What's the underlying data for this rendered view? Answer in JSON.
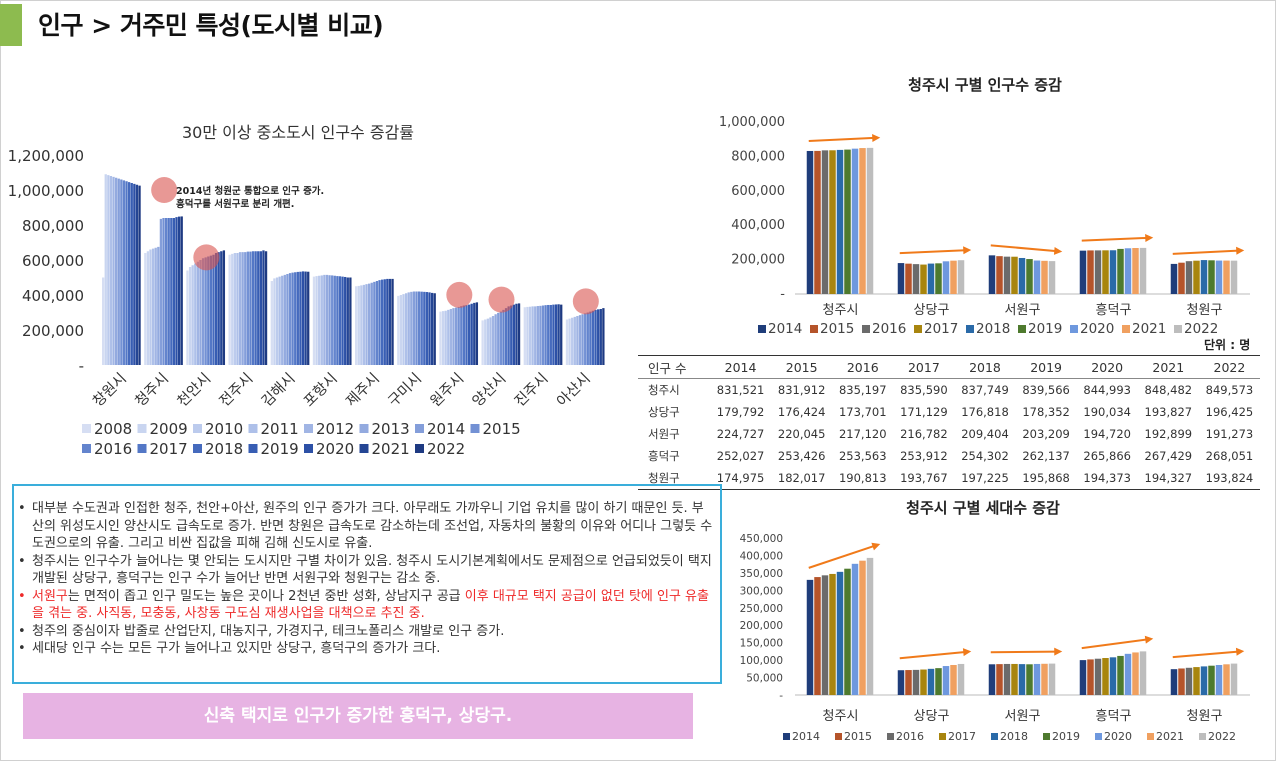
{
  "page": {
    "title": "인구 > 거주민 특성(도시별 비교)",
    "accent_color": "#8dbb4f"
  },
  "chart_data": [
    {
      "type": "bar",
      "title": "30만 이상 중소도시 인구수 증감률",
      "categories": [
        "창원시",
        "청주시",
        "천안시",
        "전주시",
        "김해시",
        "포항시",
        "제주시",
        "구미시",
        "원주시",
        "양산시",
        "진주시",
        "아산시"
      ],
      "series_names": [
        "2008",
        "2009",
        "2010",
        "2011",
        "2012",
        "2013",
        "2014",
        "2015",
        "2016",
        "2017",
        "2018",
        "2019",
        "2020",
        "2021",
        "2022"
      ],
      "values": [
        [
          500000,
          1090000,
          1085000,
          1080000,
          1075000,
          1070000,
          1065000,
          1060000,
          1055000,
          1050000,
          1045000,
          1040000,
          1035000,
          1030000,
          1025000
        ],
        [
          640000,
          650000,
          660000,
          665000,
          670000,
          675000,
          835000,
          840000,
          840000,
          840000,
          840000,
          840000,
          845000,
          848000,
          849000
        ],
        [
          540000,
          560000,
          570000,
          580000,
          590000,
          600000,
          610000,
          615000,
          620000,
          625000,
          630000,
          640000,
          645000,
          650000,
          655000
        ],
        [
          630000,
          635000,
          640000,
          640000,
          645000,
          645000,
          645000,
          648000,
          648000,
          650000,
          650000,
          650000,
          650000,
          655000,
          650000
        ],
        [
          480000,
          495000,
          500000,
          505000,
          510000,
          515000,
          520000,
          525000,
          528000,
          530000,
          532000,
          533000,
          535000,
          534000,
          533000
        ],
        [
          505000,
          508000,
          510000,
          512000,
          515000,
          515000,
          513000,
          512000,
          510000,
          508000,
          507000,
          505000,
          503000,
          500000,
          500000
        ],
        [
          450000,
          452000,
          455000,
          458000,
          462000,
          465000,
          470000,
          475000,
          480000,
          485000,
          488000,
          490000,
          492000,
          492000,
          492000
        ],
        [
          395000,
          400000,
          405000,
          410000,
          415000,
          418000,
          420000,
          420000,
          420000,
          419000,
          418000,
          417000,
          415000,
          412000,
          410000
        ],
        [
          305000,
          308000,
          310000,
          315000,
          320000,
          325000,
          328000,
          332000,
          336000,
          340000,
          342000,
          345000,
          350000,
          355000,
          358000
        ],
        [
          255000,
          260000,
          265000,
          272000,
          280000,
          290000,
          298000,
          305000,
          315000,
          325000,
          335000,
          340000,
          345000,
          350000,
          352000
        ],
        [
          330000,
          332000,
          333000,
          335000,
          335000,
          337000,
          338000,
          340000,
          342000,
          343000,
          343000,
          345000,
          346000,
          347000,
          345000
        ],
        [
          260000,
          265000,
          270000,
          275000,
          280000,
          285000,
          290000,
          295000,
          300000,
          305000,
          310000,
          315000,
          318000,
          320000,
          325000
        ]
      ],
      "yticks": [
        "1,200,000",
        "1,000,000",
        "800,000",
        "600,000",
        "400,000",
        "200,000",
        "-"
      ],
      "ylim": [
        0,
        1200000
      ],
      "annotation": [
        "2014년 청원군 통합으로 인구 증가.",
        "흥덕구를 서원구로 분리 개편."
      ],
      "highlight_categories": [
        "청주시",
        "천안시",
        "원주시",
        "양산시",
        "아산시"
      ],
      "legend_position": "bottom",
      "colors": [
        "#d6def3",
        "#c9d5f0",
        "#bccbed",
        "#aec0e9",
        "#a1b5e4",
        "#93aadf",
        "#849eda",
        "#7391d4",
        "#6384cd",
        "#5377c6",
        "#456abd",
        "#375db3",
        "#2c50a6",
        "#244594",
        "#1e3a82"
      ]
    },
    {
      "type": "bar",
      "title": "청주시 구별 인구수 증감",
      "categories": [
        "청주시",
        "상당구",
        "서원구",
        "흥덕구",
        "청원구"
      ],
      "series_names": [
        "2014",
        "2015",
        "2016",
        "2017",
        "2018",
        "2019",
        "2020",
        "2021",
        "2022"
      ],
      "values": [
        [
          831521,
          831912,
          835197,
          835590,
          837749,
          839566,
          844993,
          848482,
          849573
        ],
        [
          179792,
          176424,
          173701,
          171129,
          176818,
          178352,
          190034,
          193827,
          196425
        ],
        [
          224727,
          220045,
          217120,
          216782,
          209404,
          203209,
          194720,
          192899,
          191273
        ],
        [
          252027,
          253426,
          253563,
          253912,
          254302,
          262137,
          265866,
          267429,
          268051
        ],
        [
          174975,
          182017,
          190813,
          193767,
          197225,
          195868,
          194373,
          194327,
          193824
        ]
      ],
      "yticks": [
        "1,000,000",
        "800,000",
        "600,000",
        "400,000",
        "200,000",
        "-"
      ],
      "ylim": [
        0,
        1000000
      ],
      "legend_position": "bottom",
      "colors": [
        "#1f3d7a",
        "#b5542a",
        "#6b6b6b",
        "#a8850e",
        "#2a6aa8",
        "#4e7a2e",
        "#6e98de",
        "#f0a060",
        "#bdbdbd"
      ]
    },
    {
      "type": "bar",
      "title": "청주시 구별 세대수 증감",
      "categories": [
        "청주시",
        "상당구",
        "서원구",
        "흥덕구",
        "청원구"
      ],
      "series_names": [
        "2014",
        "2015",
        "2016",
        "2017",
        "2018",
        "2019",
        "2020",
        "2021",
        "2022"
      ],
      "values": [
        [
          330000,
          338000,
          343000,
          347000,
          353000,
          362000,
          376000,
          385000,
          393000
        ],
        [
          71000,
          71500,
          72000,
          73000,
          75000,
          77000,
          83000,
          86000,
          89000
        ],
        [
          88000,
          88500,
          89000,
          89000,
          88500,
          88000,
          89000,
          89500,
          90000
        ],
        [
          100000,
          102000,
          104000,
          106000,
          108000,
          112000,
          118000,
          122000,
          125000
        ],
        [
          74000,
          76000,
          78000,
          80000,
          82000,
          84000,
          86000,
          88000,
          90000
        ]
      ],
      "yticks": [
        "450,000",
        "400,000",
        "350,000",
        "300,000",
        "250,000",
        "200,000",
        "150,000",
        "100,000",
        "50,000",
        "-"
      ],
      "ylim": [
        0,
        450000
      ],
      "legend_position": "bottom",
      "colors": [
        "#1f3d7a",
        "#b5542a",
        "#6b6b6b",
        "#a8850e",
        "#2a6aa8",
        "#4e7a2e",
        "#6e98de",
        "#f0a060",
        "#bdbdbd"
      ]
    }
  ],
  "table": {
    "unit": "단위 : 명",
    "header": [
      "인구 수",
      "2014",
      "2015",
      "2016",
      "2017",
      "2018",
      "2019",
      "2020",
      "2021",
      "2022"
    ],
    "rows": [
      [
        "청주시",
        "831,521",
        "831,912",
        "835,197",
        "835,590",
        "837,749",
        "839,566",
        "844,993",
        "848,482",
        "849,573"
      ],
      [
        "상당구",
        "179,792",
        "176,424",
        "173,701",
        "171,129",
        "176,818",
        "178,352",
        "190,034",
        "193,827",
        "196,425"
      ],
      [
        "서원구",
        "224,727",
        "220,045",
        "217,120",
        "216,782",
        "209,404",
        "203,209",
        "194,720",
        "192,899",
        "191,273"
      ],
      [
        "흥덕구",
        "252,027",
        "253,426",
        "253,563",
        "253,912",
        "254,302",
        "262,137",
        "265,866",
        "267,429",
        "268,051"
      ],
      [
        "청원구",
        "174,975",
        "182,017",
        "190,813",
        "193,767",
        "197,225",
        "195,868",
        "194,373",
        "194,327",
        "193,824"
      ]
    ]
  },
  "notes": [
    {
      "text": "대부분 수도권과 인접한 청주, 천안+아산, 원주의 인구 증가가 크다. 아무래도 가까우니 기업 유치를 많이 하기 때문인 듯. 부산의 위성도시인 양산시도 급속도로 증가. 반면 창원은 급속도로 감소하는데 조선업, 자동차의 불황의 이유와 어디나 그렇듯 수도권으로의 유출. 그리고 비싼 집값을 피해 김해 신도시로 유출."
    },
    {
      "text": "청주시는 인구수가 늘어나는 몇 안되는 도시지만 구별 차이가 있음. 청주시 도시기본계획에서도 문제점으로 언급되었듯이 택지 개발된 상당구, 흥덕구는 인구 수가 늘어난 반면 서원구와 청원구는 감소 중."
    },
    {
      "a": "서원구",
      "b": "는 면적이 좁고 인구 밀도는 높은 곳이나 2천년 중반 성화, 상남지구 공급 ",
      "c": "이후 대규모 택지 공급이 없던 탓에 인구 유출을 겪는 중. 사직동, 모충동, 사창동 구도심 재생사업을 대책으로 추진 중."
    },
    {
      "text": "청주의 중심이자 밥줄로 산업단지, 대농지구, 가경지구, 테크노폴리스 개발로 인구 증가."
    },
    {
      "text": "세대당 인구 수는 모든 구가 늘어나고 있지만 상당구, 흥덕구의 증가가 크다."
    }
  ],
  "banner": {
    "text": "신축 택지로 인구가 증가한 흥덕구, 상당구.",
    "color": "#e7b3e3"
  },
  "colors": {
    "note_border": "#3aaedb",
    "note_red": "#ee2a2a",
    "arrow": "#f07a1a"
  }
}
